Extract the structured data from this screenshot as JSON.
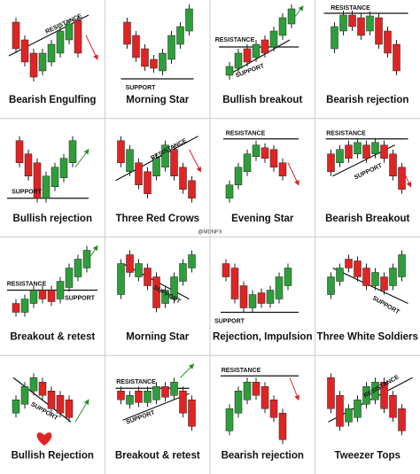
{
  "watermark": "@MDNFX",
  "cells": [
    {
      "title": "Bearish Engulfing",
      "labels": [
        "RESISTANCE"
      ]
    },
    {
      "title": "Morning Star",
      "labels": [
        "SUPPORT"
      ]
    },
    {
      "title": "Bullish breakout",
      "labels": [
        "RESISTANCE",
        "SUPPORT"
      ]
    },
    {
      "title": "Bearish rejection",
      "labels": [
        "RESISTANCE"
      ]
    },
    {
      "title": "Bullish rejection",
      "labels": [
        "SUPPORT"
      ]
    },
    {
      "title": "Three Red Crows",
      "labels": [
        "RESISTANCE"
      ]
    },
    {
      "title": "Evening Star",
      "labels": [
        "RESISTANCE"
      ]
    },
    {
      "title": "Bearish Breakout",
      "labels": [
        "RESISTANCE",
        "SUPPORT"
      ]
    },
    {
      "title": "Breakout & retest",
      "labels": [
        "RESISTANCE",
        "SUPPORT"
      ]
    },
    {
      "title": "Morning Star",
      "labels": [
        "SUPPORT"
      ]
    },
    {
      "title": "Rejection, Impulsion",
      "labels": [
        "SUPPORT"
      ]
    },
    {
      "title": "Three White Soldiers",
      "labels": [
        "SUPPORT"
      ]
    },
    {
      "title": "Bullish Rejection",
      "labels": [
        "SUPPORT"
      ]
    },
    {
      "title": "Breakout & retest",
      "labels": [
        "RESISTANCE",
        "SUPPORT"
      ]
    },
    {
      "title": "Bearish rejection",
      "labels": [
        "RESISTANCE"
      ]
    },
    {
      "title": "Tweezer Tops",
      "labels": [
        "RESISTANCE"
      ]
    }
  ]
}
